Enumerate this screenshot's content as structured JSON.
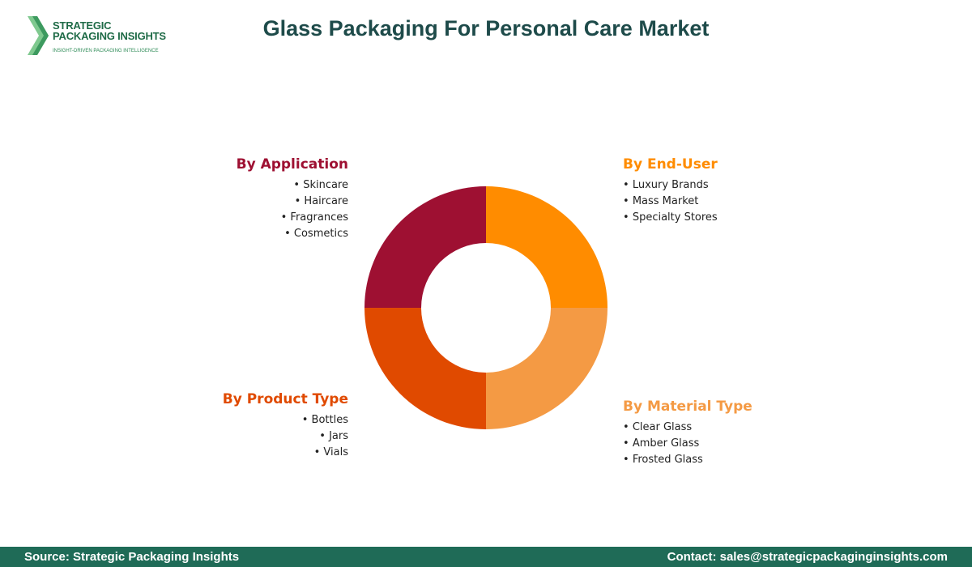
{
  "logo": {
    "line1": "STRATEGIC",
    "line2": "PACKAGING INSIGHTS",
    "tagline": "INSIGHT-DRIVEN PACKAGING INTELLIGENCE"
  },
  "title": "Glass Packaging For Personal Care Market",
  "segments": {
    "application": {
      "heading": "By Application",
      "items": [
        "Skincare",
        "Haircare",
        "Fragrances",
        "Cosmetics"
      ],
      "color": "#9e1032"
    },
    "end_user": {
      "heading": "By End-User",
      "items": [
        "Luxury Brands",
        "Mass Market",
        "Specialty Stores"
      ],
      "color": "#ff8c00"
    },
    "product_type": {
      "heading": "By Product Type",
      "items": [
        "Bottles",
        "Jars",
        "Vials"
      ],
      "color": "#e04a00"
    },
    "material_type": {
      "heading": "By Material Type",
      "items": [
        "Clear Glass",
        "Amber Glass",
        "Frosted Glass"
      ],
      "color": "#f49a44"
    }
  },
  "chart_data": {
    "type": "pie",
    "categories": [
      "By End-User",
      "By Material Type",
      "By Product Type",
      "By Application"
    ],
    "values": [
      25,
      25,
      25,
      25
    ],
    "colors": [
      "#ff8c00",
      "#f49a44",
      "#e04a00",
      "#9e1032"
    ],
    "donut": true
  },
  "footer": {
    "source": "Source: Strategic Packaging Insights",
    "contact": "Contact: sales@strategicpackaginginsights.com"
  }
}
